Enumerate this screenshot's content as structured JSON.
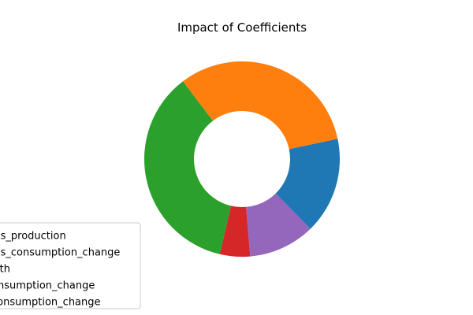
{
  "chart_data": {
    "type": "pie",
    "title": "Impact of Coefficients",
    "donut": true,
    "series": [
      {
        "name": "els_production",
        "value": 16,
        "color": "#1f77b4"
      },
      {
        "name": "els_consumption_change",
        "value": 32,
        "color": "#ff7f0e"
      },
      {
        "name": "wth",
        "value": 36,
        "color": "#2ca02c"
      },
      {
        "name": "onsumption_change",
        "value": 5,
        "color": "#d62728"
      },
      {
        "name": "consumption_change",
        "value": 11,
        "color": "#9467bd"
      }
    ],
    "slice_order_clockwise_from_right": [
      0,
      4,
      3,
      2,
      1
    ],
    "legend_position": "lower-left"
  }
}
